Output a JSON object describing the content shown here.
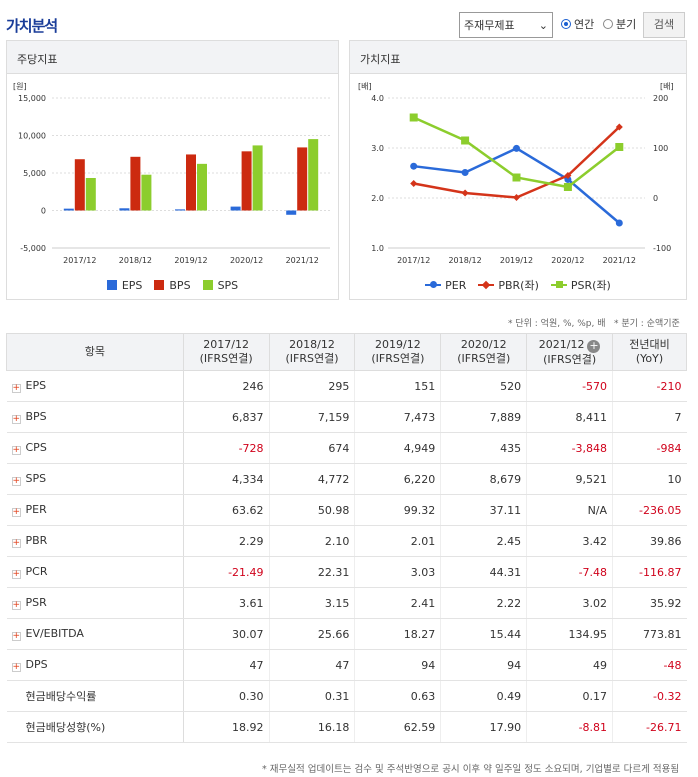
{
  "title": "가치분석",
  "controls": {
    "select_value": "주재무제표",
    "radio1": "연간",
    "radio2": "분기",
    "search_btn": "검색"
  },
  "panel1": {
    "title": "주당지표"
  },
  "panel2": {
    "title": "가치지표"
  },
  "chart_data": [
    {
      "type": "bar",
      "title": "주당지표",
      "ylabel": "[원]",
      "ylim": [
        -5000,
        15000
      ],
      "yticks": [
        "15,000",
        "10,000",
        "5,000",
        "0",
        "-5,000"
      ],
      "categories": [
        "2017/12",
        "2018/12",
        "2019/12",
        "2020/12",
        "2021/12"
      ],
      "series": [
        {
          "name": "EPS",
          "color": "#2a6ad9",
          "values": [
            246,
            295,
            151,
            520,
            -570
          ]
        },
        {
          "name": "BPS",
          "color": "#cc2a10",
          "values": [
            6837,
            7159,
            7473,
            7889,
            8411
          ]
        },
        {
          "name": "SPS",
          "color": "#8ccd2d",
          "values": [
            4334,
            4772,
            6220,
            8679,
            9521
          ]
        }
      ],
      "legend": "bottom"
    },
    {
      "type": "line",
      "title": "가치지표",
      "ylabel_left": "[배]",
      "ylabel_right": "[배]",
      "ylim_left": [
        1.0,
        4.0
      ],
      "yticks_left": [
        "4.0",
        "3.0",
        "2.0",
        "1.0"
      ],
      "ylim_right": [
        -100,
        200
      ],
      "yticks_right": [
        "200",
        "100",
        "0",
        "-100"
      ],
      "categories": [
        "2017/12",
        "2018/12",
        "2019/12",
        "2020/12",
        "2021/12"
      ],
      "series": [
        {
          "name": "PER",
          "color": "#2a6ad9",
          "axis": "right",
          "values": [
            63.62,
            50.98,
            99.32,
            37.11,
            -50
          ]
        },
        {
          "name": "PBR(좌)",
          "color": "#d4341a",
          "axis": "left",
          "values": [
            2.29,
            2.1,
            2.01,
            2.45,
            3.42
          ]
        },
        {
          "name": "PSR(좌)",
          "color": "#8ccd2d",
          "axis": "left",
          "values": [
            3.61,
            3.15,
            2.41,
            2.22,
            3.02
          ]
        }
      ],
      "legend": "bottom"
    }
  ],
  "notes": {
    "unit": "* 단위 : 억원, %, %p, 배",
    "quarter": "* 분기 : 순액기준",
    "footer": "* 재무실적 업데이트는 검수 및 주석반영으로 공시 이후 약 일주일 정도 소요되며, 기업별로 다르게 적용됨"
  },
  "table": {
    "header": {
      "item": "항목",
      "cols": [
        [
          "2017/12",
          "(IFRS연결)"
        ],
        [
          "2018/12",
          "(IFRS연결)"
        ],
        [
          "2019/12",
          "(IFRS연결)"
        ],
        [
          "2020/12",
          "(IFRS연결)"
        ],
        [
          "2021/12",
          "(IFRS연결)"
        ]
      ],
      "yoy": [
        "전년대비",
        "(YoY)"
      ]
    },
    "rows": [
      {
        "label": "EPS",
        "plus": true,
        "vals": [
          "246",
          "295",
          "151",
          "520",
          "-570",
          "-210"
        ]
      },
      {
        "label": "BPS",
        "plus": true,
        "vals": [
          "6,837",
          "7,159",
          "7,473",
          "7,889",
          "8,411",
          "7"
        ]
      },
      {
        "label": "CPS",
        "plus": true,
        "vals": [
          "-728",
          "674",
          "4,949",
          "435",
          "-3,848",
          "-984"
        ]
      },
      {
        "label": "SPS",
        "plus": true,
        "vals": [
          "4,334",
          "4,772",
          "6,220",
          "8,679",
          "9,521",
          "10"
        ]
      },
      {
        "label": "PER",
        "plus": true,
        "vals": [
          "63.62",
          "50.98",
          "99.32",
          "37.11",
          "N/A",
          "-236.05"
        ]
      },
      {
        "label": "PBR",
        "plus": true,
        "vals": [
          "2.29",
          "2.10",
          "2.01",
          "2.45",
          "3.42",
          "39.86"
        ]
      },
      {
        "label": "PCR",
        "plus": true,
        "vals": [
          "-21.49",
          "22.31",
          "3.03",
          "44.31",
          "-7.48",
          "-116.87"
        ]
      },
      {
        "label": "PSR",
        "plus": true,
        "vals": [
          "3.61",
          "3.15",
          "2.41",
          "2.22",
          "3.02",
          "35.92"
        ]
      },
      {
        "label": "EV/EBITDA",
        "plus": true,
        "vals": [
          "30.07",
          "25.66",
          "18.27",
          "15.44",
          "134.95",
          "773.81"
        ]
      },
      {
        "label": "DPS",
        "plus": true,
        "vals": [
          "47",
          "47",
          "94",
          "94",
          "49",
          "-48"
        ]
      },
      {
        "label": "현금배당수익률",
        "plus": false,
        "vals": [
          "0.30",
          "0.31",
          "0.63",
          "0.49",
          "0.17",
          "-0.32"
        ]
      },
      {
        "label": "현금배당성향(%)",
        "plus": false,
        "vals": [
          "18.92",
          "16.18",
          "62.59",
          "17.90",
          "-8.81",
          "-26.71"
        ]
      }
    ]
  }
}
